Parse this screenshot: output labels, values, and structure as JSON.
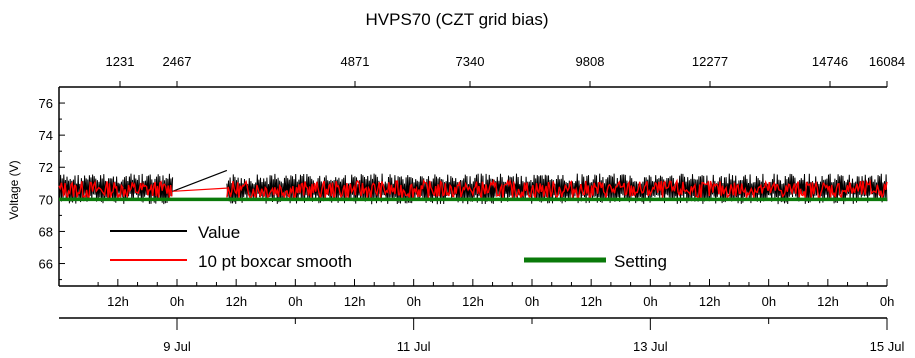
{
  "chart_data": {
    "type": "line",
    "title": "HVPS70 (CZT grid bias)",
    "ylabel": "Voltage (V)",
    "ylim": [
      64.6,
      77.0
    ],
    "yticks": [
      "66",
      "68",
      "70",
      "72",
      "74",
      "76"
    ],
    "top_axis": {
      "ticks": [
        "1231",
        "2467",
        "4871",
        "7340",
        "9808",
        "12277",
        "14746",
        "16084"
      ]
    },
    "bottom_axis_hours": {
      "ticks": [
        "12h",
        "0h",
        "12h",
        "0h",
        "12h",
        "0h",
        "12h",
        "0h",
        "12h",
        "0h",
        "12h",
        "0h",
        "12h",
        "0h"
      ]
    },
    "bottom_axis_dates": {
      "ticks": [
        "9 Jul",
        "11 Jul",
        "13 Jul",
        "15 Jul"
      ]
    },
    "legend": [
      "Value",
      "10 pt boxcar smooth",
      "Setting"
    ],
    "series": [
      {
        "name": "Value",
        "color": "#000000",
        "band": [
          69.7,
          71.6
        ],
        "gap_line": [
          [
            2467,
            70.5
          ],
          [
            3500,
            71.8
          ]
        ]
      },
      {
        "name": "10 pt boxcar smooth",
        "color": "#ff0000",
        "mean": 70.6,
        "band": [
          70.1,
          71.2
        ]
      },
      {
        "name": "Setting",
        "color": "#0a7a0a",
        "value": 70.0
      }
    ]
  }
}
